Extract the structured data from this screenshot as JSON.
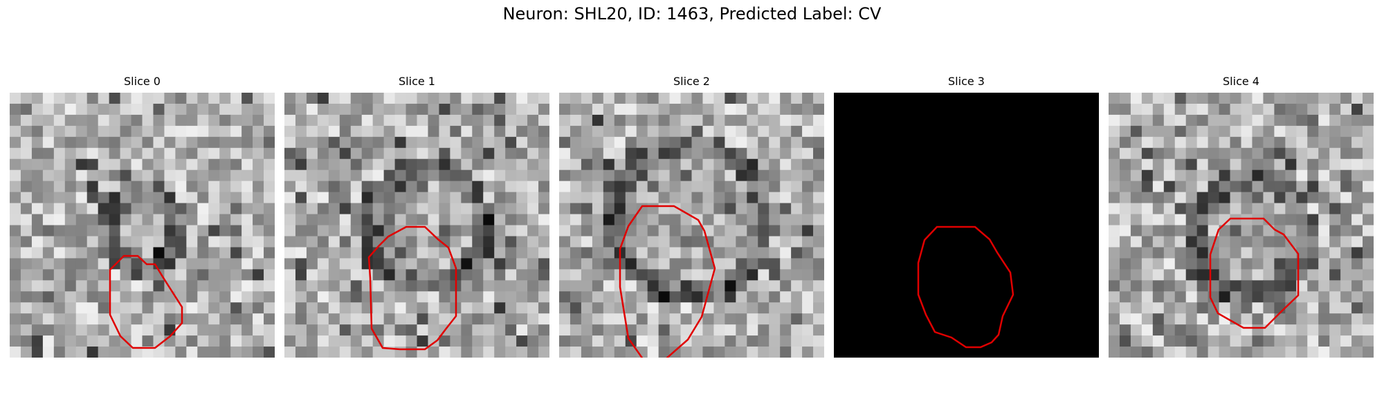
{
  "figure": {
    "title": "Neuron: SHL20, ID: 1463, Predicted Label: CV"
  },
  "contour_color": "#e00000",
  "colormap": "grayscale",
  "panels": [
    {
      "title": "Slice 0",
      "style": "textured"
    },
    {
      "title": "Slice 1",
      "style": "textured"
    },
    {
      "title": "Slice 2",
      "style": "textured"
    },
    {
      "title": "Slice 3",
      "style": "blank"
    },
    {
      "title": "Slice 4",
      "style": "textured"
    }
  ]
}
